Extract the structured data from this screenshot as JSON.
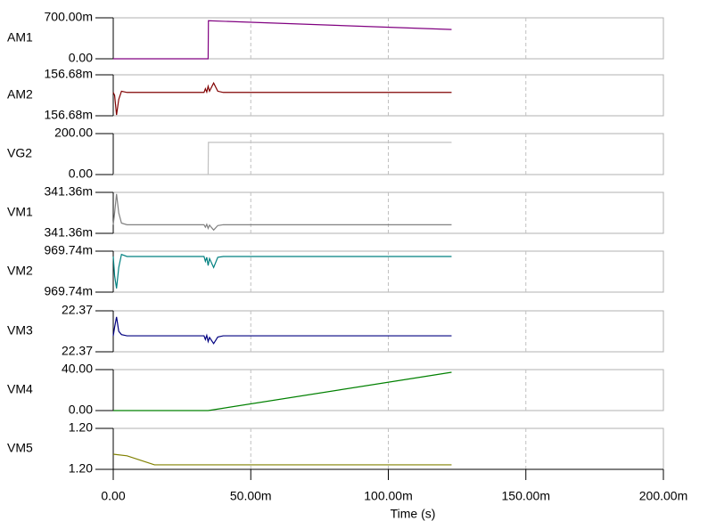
{
  "x_axis": {
    "label": "Time (s)",
    "xlim": [
      0,
      0.2
    ],
    "xticks": [
      {
        "value": 0,
        "label": "0.00"
      },
      {
        "value": 0.05,
        "label": "50.00m"
      },
      {
        "value": 0.1,
        "label": "100.00m"
      },
      {
        "value": 0.15,
        "label": "150.00m"
      },
      {
        "value": 0.2,
        "label": "200.00m"
      }
    ]
  },
  "chart_data": [
    {
      "type": "line",
      "ylabel": "AM1",
      "color": "#800080",
      "ylim": [
        0,
        0.7
      ],
      "yticks": [
        {
          "value": 0,
          "label": "0.00"
        },
        {
          "value": 0.7,
          "label": "700.00m"
        }
      ],
      "x": [
        0,
        0.0345,
        0.0346,
        0.123
      ],
      "values": [
        0,
        0,
        0.65,
        0.5
      ]
    },
    {
      "type": "line",
      "ylabel": "AM2",
      "color": "#800000",
      "ylim": [
        0.156676,
        0.156684
      ],
      "yticks": [
        {
          "value": 0.156676,
          "label": "156.68m"
        },
        {
          "value": 0.156684,
          "label": "156.68m"
        }
      ],
      "x": [
        0,
        0.0005,
        0.0012,
        0.002,
        0.003,
        0.005,
        0.033,
        0.0335,
        0.034,
        0.0345,
        0.035,
        0.0365,
        0.038,
        0.04,
        0.123
      ],
      "values": [
        0.15668056,
        0.15668,
        0.15667616,
        0.1566792,
        0.1566808,
        0.15668056,
        0.15668056,
        0.15668128,
        0.15668064,
        0.15668176,
        0.1566808,
        0.1566824,
        0.1566808,
        0.15668056,
        0.15668056
      ]
    },
    {
      "type": "line",
      "ylabel": "VG2",
      "color": "#c0c0c0",
      "ylim": [
        0,
        200
      ],
      "yticks": [
        {
          "value": 0,
          "label": "0.00"
        },
        {
          "value": 200,
          "label": "200.00"
        }
      ],
      "x": [
        0,
        0.0345,
        0.0346,
        0.123
      ],
      "values": [
        0,
        0,
        157,
        157
      ]
    },
    {
      "type": "line",
      "ylabel": "VM1",
      "color": "#808080",
      "ylim": [
        0.341356,
        0.341364
      ],
      "yticks": [
        {
          "value": 0.341356,
          "label": "341.36m"
        },
        {
          "value": 0.341364,
          "label": "341.36m"
        }
      ],
      "x": [
        0,
        0.0005,
        0.0012,
        0.002,
        0.003,
        0.005,
        0.033,
        0.0335,
        0.034,
        0.0345,
        0.035,
        0.0365,
        0.038,
        0.04,
        0.123
      ],
      "values": [
        0.34135768,
        0.34136,
        0.34136368,
        0.34136,
        0.341358,
        0.34135768,
        0.34135768,
        0.3413572,
        0.34135776,
        0.34135696,
        0.3413576,
        0.34135664,
        0.34135752,
        0.34135768,
        0.34135768
      ]
    },
    {
      "type": "line",
      "ylabel": "VM2",
      "color": "#008080",
      "ylim": [
        0.969736,
        0.969744
      ],
      "yticks": [
        {
          "value": 0.969736,
          "label": "969.74m"
        },
        {
          "value": 0.969744,
          "label": "969.74m"
        }
      ],
      "x": [
        0,
        0.0005,
        0.0012,
        0.002,
        0.003,
        0.005,
        0.033,
        0.0335,
        0.034,
        0.0345,
        0.035,
        0.0365,
        0.038,
        0.04,
        0.123
      ],
      "values": [
        0.96974296,
        0.9697392,
        0.96973672,
        0.9697408,
        0.96974336,
        0.96974296,
        0.96974296,
        0.969742,
        0.9697428,
        0.9697412,
        0.96974256,
        0.9697408,
        0.9697428,
        0.96974296,
        0.96974296
      ]
    },
    {
      "type": "line",
      "ylabel": "VM3",
      "color": "#000080",
      "ylim": [
        22.366,
        22.374
      ],
      "yticks": [
        {
          "value": 22.366,
          "label": "22.37"
        },
        {
          "value": 22.374,
          "label": "22.37"
        }
      ],
      "x": [
        0,
        0.0005,
        0.0012,
        0.002,
        0.003,
        0.005,
        0.033,
        0.0335,
        0.034,
        0.0345,
        0.035,
        0.0365,
        0.038,
        0.04,
        0.123
      ],
      "values": [
        22.36912,
        22.3708,
        22.3728,
        22.37,
        22.36936,
        22.36912,
        22.36912,
        22.3684,
        22.3692,
        22.368,
        22.3688,
        22.3676,
        22.36888,
        22.36912,
        22.36912
      ]
    },
    {
      "type": "line",
      "ylabel": "VM4",
      "color": "#008000",
      "ylim": [
        0,
        40
      ],
      "yticks": [
        {
          "value": 0,
          "label": "0.00"
        },
        {
          "value": 40,
          "label": "40.00"
        }
      ],
      "x": [
        0,
        0.0345,
        0.123
      ],
      "values": [
        0,
        0,
        37.4
      ]
    },
    {
      "type": "line",
      "ylabel": "VM5",
      "color": "#808000",
      "ylim": [
        1.196,
        1.204
      ],
      "yticks": [
        {
          "value": 1.196,
          "label": "1.20"
        },
        {
          "value": 1.204,
          "label": "1.20"
        }
      ],
      "x": [
        0,
        0.005,
        0.015,
        0.123
      ],
      "values": [
        1.19896,
        1.19864,
        1.19688,
        1.19688
      ]
    }
  ]
}
